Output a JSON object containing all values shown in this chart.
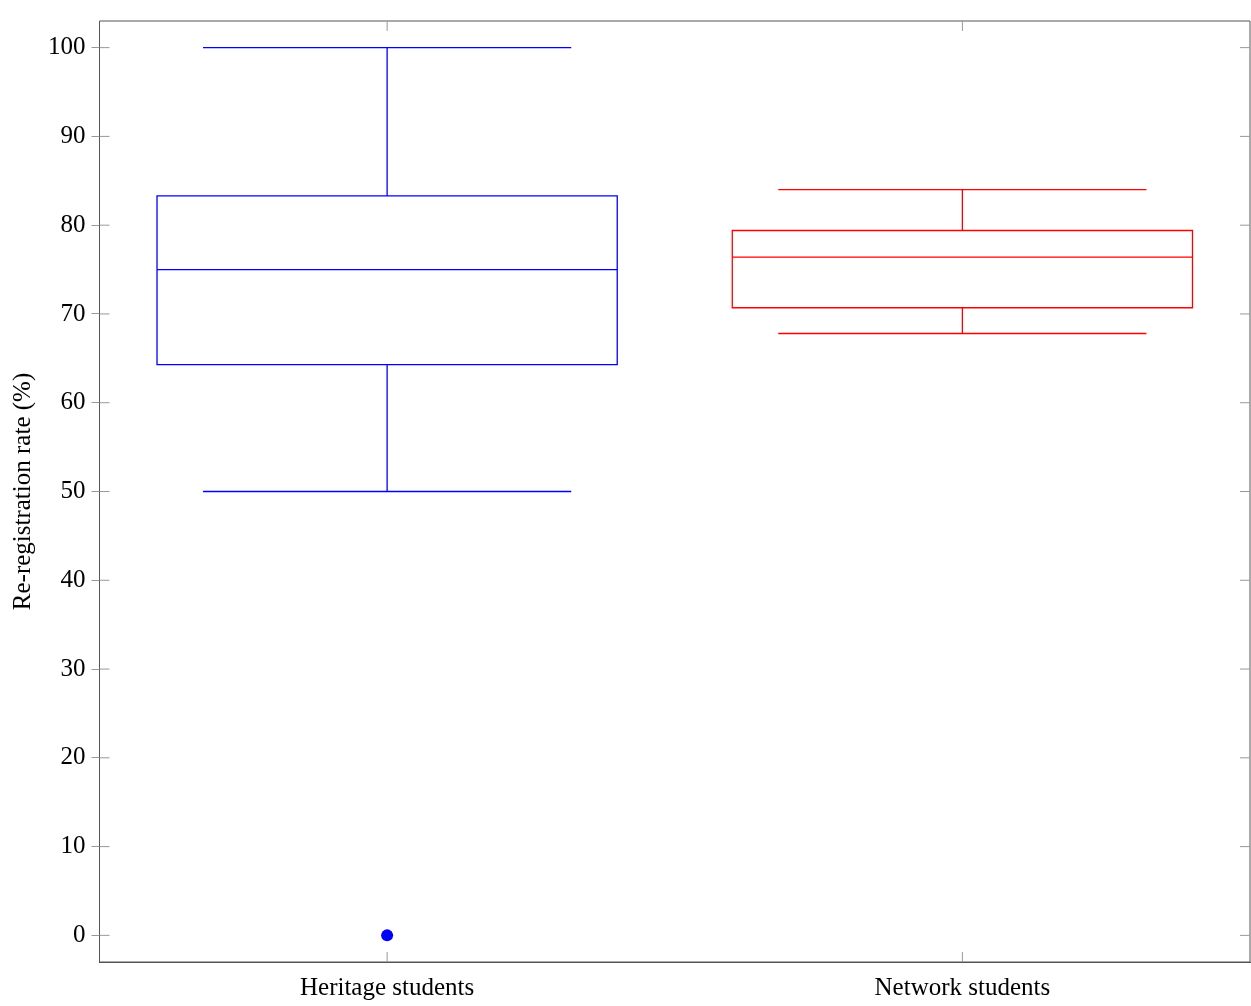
{
  "chart_data": {
    "type": "box",
    "ylabel": "Re-registration rate (%)",
    "categories": [
      "Heritage students",
      "Network students"
    ],
    "colors": [
      "#0000ff",
      "#ff0000"
    ],
    "boxes": [
      {
        "low": 50,
        "q1": 64.3,
        "median": 75,
        "q3": 83.3,
        "high": 100,
        "outliers": [
          0
        ]
      },
      {
        "low": 67.8,
        "q1": 70.7,
        "median": 76.4,
        "q3": 79.4,
        "high": 84
      }
    ],
    "ylim": [
      -3,
      103
    ],
    "yticks": [
      0,
      10,
      20,
      30,
      40,
      50,
      60,
      70,
      80,
      90,
      100
    ],
    "grid": false
  }
}
